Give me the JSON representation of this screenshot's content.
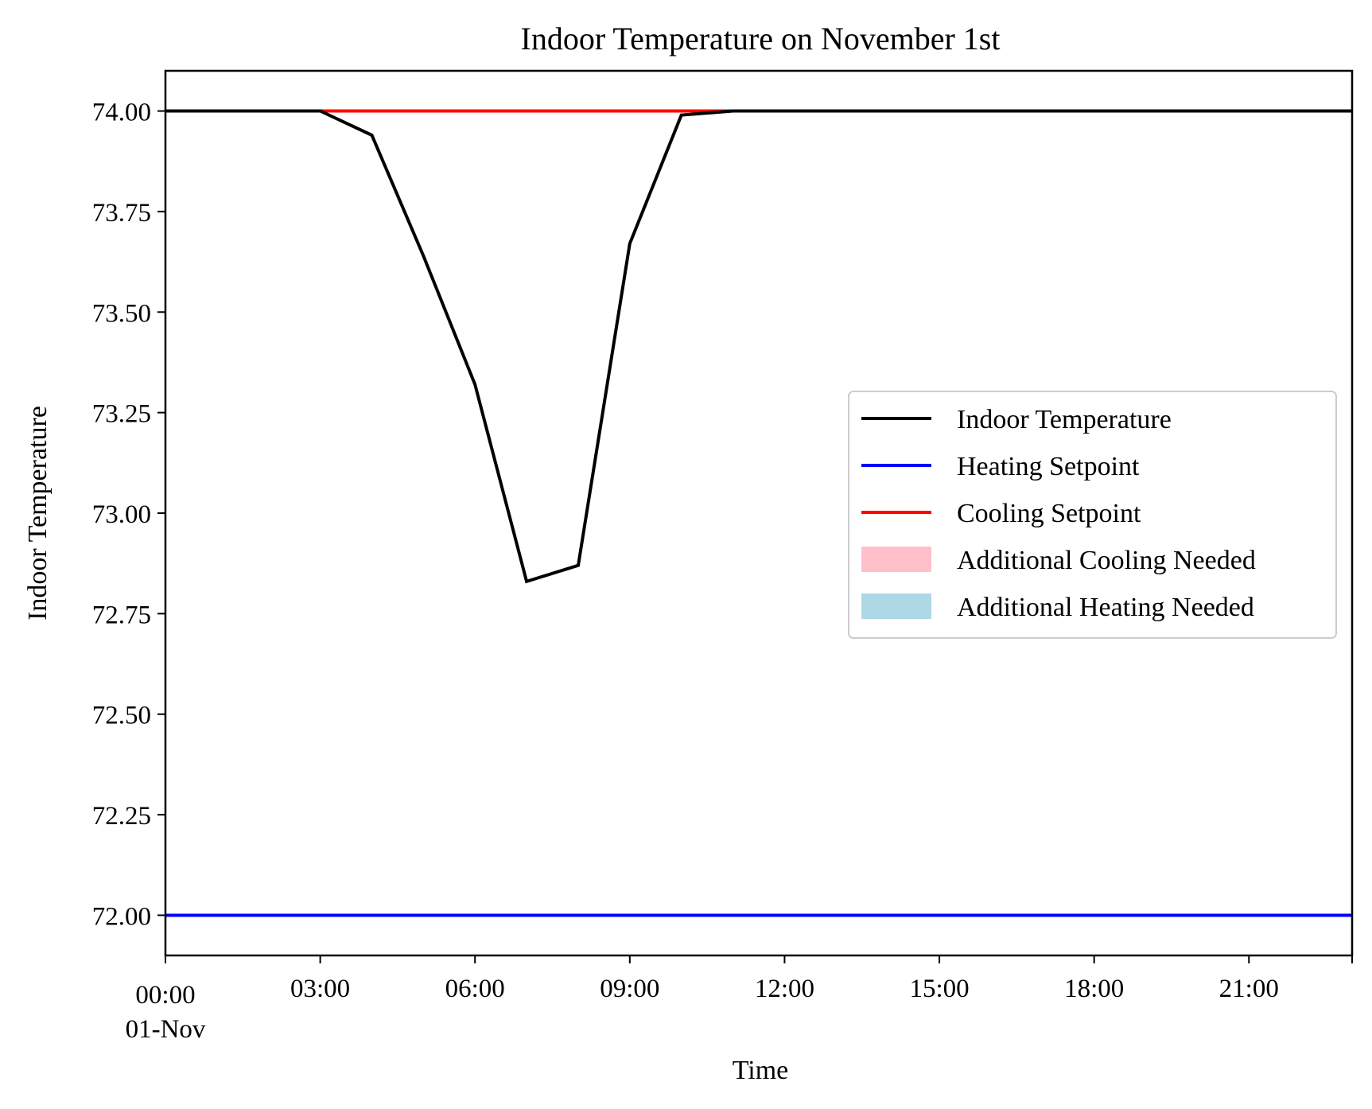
{
  "chart_data": {
    "type": "line",
    "title": "Indoor Temperature on November 1st",
    "xlabel": "Time",
    "ylabel": "Indoor Temperature",
    "x_ticks": [
      {
        "hour": 0,
        "label": "00:00",
        "sublabel": "01-Nov"
      },
      {
        "hour": 3,
        "label": "03:00"
      },
      {
        "hour": 6,
        "label": "06:00"
      },
      {
        "hour": 9,
        "label": "09:00"
      },
      {
        "hour": 12,
        "label": "12:00"
      },
      {
        "hour": 15,
        "label": "15:00"
      },
      {
        "hour": 18,
        "label": "18:00"
      },
      {
        "hour": 21,
        "label": "21:00"
      }
    ],
    "y_ticks": [
      {
        "value": 72.0,
        "label": "72.00"
      },
      {
        "value": 72.25,
        "label": "72.25"
      },
      {
        "value": 72.5,
        "label": "72.50"
      },
      {
        "value": 72.75,
        "label": "72.75"
      },
      {
        "value": 73.0,
        "label": "73.00"
      },
      {
        "value": 73.25,
        "label": "73.25"
      },
      {
        "value": 73.5,
        "label": "73.50"
      },
      {
        "value": 73.75,
        "label": "73.75"
      },
      {
        "value": 74.0,
        "label": "74.00"
      }
    ],
    "xlim": [
      0,
      23
    ],
    "ylim": [
      71.9,
      74.1
    ],
    "grid": false,
    "legend_position": "center-right",
    "series": [
      {
        "name": "Indoor Temperature",
        "color": "#000000",
        "x": [
          0,
          1,
          2,
          3,
          4,
          5,
          6,
          7,
          8,
          9,
          10,
          11,
          12,
          13,
          14,
          15,
          16,
          17,
          18,
          19,
          20,
          21,
          22,
          23
        ],
        "y": [
          74.0,
          74.0,
          74.0,
          74.0,
          73.94,
          73.64,
          73.32,
          72.83,
          72.87,
          73.67,
          73.99,
          74.0,
          74.0,
          74.0,
          74.0,
          74.0,
          74.0,
          74.0,
          74.0,
          74.0,
          74.0,
          74.0,
          74.0,
          74.0
        ]
      },
      {
        "name": "Heating Setpoint",
        "color": "#0000ff",
        "x": [
          0,
          23
        ],
        "y": [
          72.0,
          72.0
        ]
      },
      {
        "name": "Cooling Setpoint",
        "color": "#ff0000",
        "x": [
          0,
          23
        ],
        "y": [
          74.0,
          74.0
        ]
      }
    ],
    "fill_series": [
      {
        "name": "Additional Cooling Needed",
        "color": "#ffc0cb"
      },
      {
        "name": "Additional Heating Needed",
        "color": "#add8e6"
      }
    ]
  }
}
